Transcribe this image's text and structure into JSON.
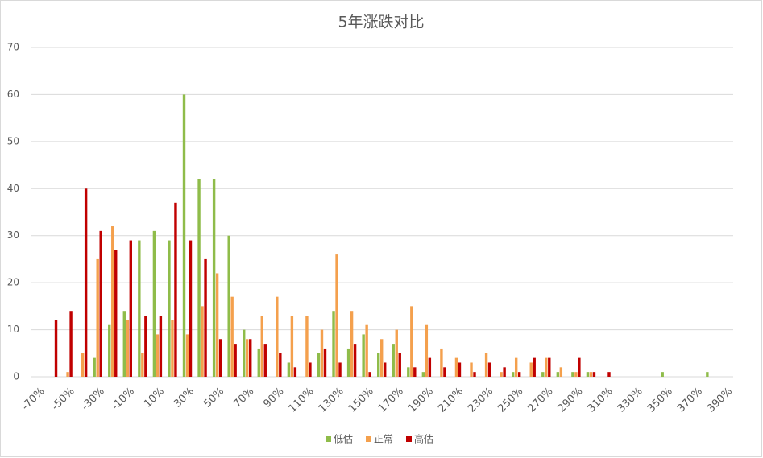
{
  "chart_data": {
    "type": "bar",
    "title": "5年涨跌对比",
    "categories": [
      "-70%",
      null,
      "-50%",
      null,
      "-30%",
      null,
      "-10%",
      null,
      "10%",
      null,
      "30%",
      null,
      "50%",
      null,
      "70%",
      null,
      "90%",
      null,
      "110%",
      null,
      "130%",
      null,
      "150%",
      null,
      "170%",
      null,
      "190%",
      null,
      "210%",
      null,
      "230%",
      null,
      "250%",
      null,
      "270%",
      null,
      "290%",
      null,
      "310%",
      null,
      "330%",
      null,
      "350%",
      null,
      "370%",
      null,
      "390%"
    ],
    "series": [
      {
        "name": "低估",
        "color": "#8fbc4a",
        "values": [
          0,
          0,
          0,
          0,
          4,
          11,
          14,
          29,
          31,
          29,
          60,
          42,
          42,
          30,
          10,
          6,
          0,
          3,
          0,
          5,
          14,
          6,
          9,
          5,
          7,
          2,
          1,
          0,
          0,
          0,
          0,
          0,
          1,
          0,
          1,
          1,
          1,
          1,
          0,
          0,
          0,
          0,
          1,
          0,
          0,
          1,
          0
        ]
      },
      {
        "name": "正常",
        "color": "#f4a04d",
        "values": [
          0,
          0,
          1,
          5,
          25,
          32,
          12,
          5,
          9,
          12,
          9,
          15,
          22,
          17,
          8,
          13,
          17,
          13,
          13,
          10,
          26,
          14,
          11,
          8,
          10,
          15,
          11,
          6,
          4,
          3,
          5,
          1,
          4,
          3,
          4,
          2,
          1,
          1,
          0,
          0,
          0,
          0,
          0,
          0,
          0,
          0,
          0
        ]
      },
      {
        "name": "高估",
        "color": "#c00000",
        "values": [
          0,
          12,
          14,
          40,
          31,
          27,
          29,
          13,
          13,
          37,
          29,
          25,
          8,
          7,
          8,
          7,
          5,
          2,
          3,
          6,
          3,
          7,
          1,
          3,
          5,
          2,
          4,
          2,
          3,
          1,
          3,
          2,
          1,
          4,
          4,
          0,
          4,
          1,
          1,
          0,
          0,
          0,
          0,
          0,
          0,
          0,
          0
        ]
      }
    ],
    "ylim": [
      0,
      70
    ],
    "yticks": [
      0,
      10,
      20,
      30,
      40,
      50,
      60,
      70
    ],
    "grid": true,
    "legend": "bottom"
  }
}
